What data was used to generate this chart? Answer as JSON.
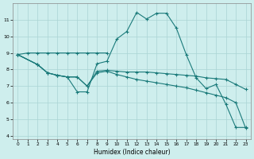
{
  "xlabel": "Humidex (Indice chaleur)",
  "background_color": "#ceeeed",
  "grid_color": "#aad4d4",
  "line_color": "#1a7a7a",
  "xlim": [
    -0.5,
    23.5
  ],
  "ylim": [
    3.8,
    12.0
  ],
  "yticks": [
    4,
    5,
    6,
    7,
    8,
    9,
    10,
    11
  ],
  "xticks": [
    0,
    1,
    2,
    3,
    4,
    5,
    6,
    7,
    8,
    9,
    10,
    11,
    12,
    13,
    14,
    15,
    16,
    17,
    18,
    19,
    20,
    21,
    22,
    23
  ],
  "line1_x": [
    0,
    1,
    2,
    3,
    4,
    5,
    6,
    7,
    8,
    9
  ],
  "line1_y": [
    8.9,
    9.0,
    9.0,
    9.0,
    9.0,
    9.0,
    9.0,
    9.0,
    9.0,
    9.0
  ],
  "line2_x": [
    0,
    2,
    3,
    4,
    5,
    6,
    7,
    8,
    9,
    10,
    11,
    12,
    13,
    14,
    15,
    16,
    17,
    18,
    19,
    20,
    21,
    22,
    23
  ],
  "line2_y": [
    8.9,
    8.3,
    7.8,
    7.65,
    7.55,
    6.65,
    6.65,
    8.35,
    8.5,
    9.85,
    10.3,
    11.45,
    11.05,
    11.4,
    11.4,
    10.5,
    8.9,
    7.5,
    6.85,
    7.1,
    5.9,
    4.5,
    4.5
  ],
  "line3_x": [
    0,
    2,
    3,
    4,
    5,
    6,
    7,
    8,
    9,
    10,
    11,
    12,
    13,
    14,
    15,
    16,
    17,
    18,
    19,
    20,
    21,
    22,
    23
  ],
  "line3_y": [
    8.9,
    8.3,
    7.8,
    7.65,
    7.55,
    7.55,
    7.0,
    7.9,
    7.95,
    7.9,
    7.85,
    7.85,
    7.85,
    7.8,
    7.75,
    7.7,
    7.65,
    7.6,
    7.5,
    7.45,
    7.4,
    7.1,
    6.8
  ],
  "line4_x": [
    0,
    2,
    3,
    4,
    5,
    6,
    7,
    8,
    9,
    10,
    11,
    12,
    13,
    14,
    15,
    16,
    17,
    18,
    19,
    20,
    21,
    22,
    23
  ],
  "line4_y": [
    8.9,
    8.3,
    7.8,
    7.65,
    7.55,
    7.55,
    7.0,
    7.8,
    7.9,
    7.7,
    7.55,
    7.4,
    7.3,
    7.2,
    7.1,
    7.0,
    6.9,
    6.75,
    6.6,
    6.45,
    6.3,
    6.0,
    4.45
  ]
}
